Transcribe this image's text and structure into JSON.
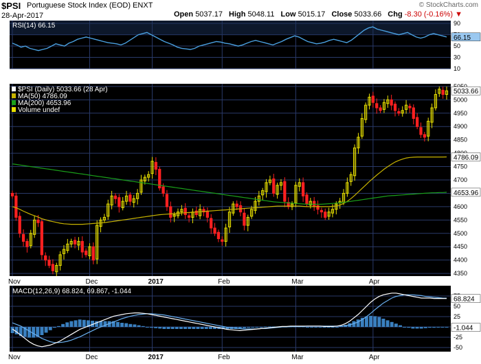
{
  "header": {
    "symbol": "$PSI",
    "name": "Portuguese Stock Index (EOD)",
    "exchange": "ENXT",
    "date": "28-Apr-2017",
    "open_label": "Open",
    "open": "5037.17",
    "high_label": "High",
    "high": "5048.11",
    "low_label": "Low",
    "low": "5015.17",
    "close_label": "Close",
    "close": "5033.66",
    "chg_label": "Chg",
    "chg": "-8.30 (-0.16%)",
    "watermark": "© StockCharts.com"
  },
  "colors": {
    "panel_bg": "#000000",
    "grid": "#2a3a6a",
    "up": "#e8e000",
    "down": "#ff2020",
    "ma50": "#c8b400",
    "ma200": "#1aa01a",
    "rsi": "#4aa0e0",
    "macd_line": "#ffffff",
    "signal_line": "#6ab0f0",
    "histogram": "#3a80c0"
  },
  "chart_data": [
    {
      "type": "line",
      "panel": "RSI",
      "legend": "RSI(14) 66.15",
      "last_value_label": "66.15",
      "ylim": [
        10,
        95
      ],
      "yticks": [
        90,
        70,
        50,
        30,
        10
      ],
      "values": [
        55,
        52,
        48,
        50,
        46,
        44,
        42,
        44,
        46,
        50,
        54,
        52,
        50,
        55,
        58,
        62,
        64,
        66,
        64,
        62,
        60,
        58,
        56,
        55,
        54,
        52,
        55,
        60,
        65,
        70,
        72,
        74,
        70,
        66,
        62,
        58,
        55,
        52,
        48,
        46,
        45,
        44,
        46,
        50,
        52,
        54,
        56,
        58,
        57,
        55,
        54,
        52,
        50,
        52,
        55,
        58,
        60,
        58,
        56,
        54,
        52,
        55,
        58,
        62,
        65,
        68,
        66,
        62,
        58,
        56,
        54,
        55,
        57,
        60,
        62,
        60,
        58,
        56,
        60,
        66,
        72,
        78,
        82,
        84,
        80,
        78,
        76,
        74,
        72,
        70,
        72,
        74,
        70,
        66,
        64,
        66,
        70,
        72,
        70,
        68,
        66.15
      ]
    },
    {
      "type": "candlestick",
      "panel": "Price",
      "legend": [
        "$PSI (Daily) 5033.66 (28 Apr)",
        "MA(50) 4786.09",
        "MA(200) 4653.96",
        "Volume undef"
      ],
      "last_value_labels": [
        "5033.66",
        "4786.09",
        "4653.96"
      ],
      "ylim": [
        4340,
        5060
      ],
      "yticks": [
        5050,
        5000,
        4950,
        4900,
        4850,
        4800,
        4750,
        4700,
        4650,
        4600,
        4550,
        4500,
        4450,
        4400,
        4350
      ],
      "x_labels": [
        "Nov",
        "Dec",
        "2017",
        "Feb",
        "Mar",
        "Apr"
      ],
      "x_label_index": [
        0,
        21,
        38,
        57,
        77,
        98
      ],
      "closes": [
        4640,
        4560,
        4500,
        4470,
        4450,
        4500,
        4550,
        4540,
        4420,
        4400,
        4380,
        4360,
        4380,
        4420,
        4440,
        4460,
        4470,
        4460,
        4470,
        4430,
        4420,
        4450,
        4400,
        4530,
        4550,
        4560,
        4610,
        4640,
        4630,
        4600,
        4620,
        4640,
        4620,
        4630,
        4650,
        4700,
        4710,
        4720,
        4770,
        4740,
        4670,
        4650,
        4600,
        4560,
        4570,
        4580,
        4590,
        4570,
        4560,
        4580,
        4570,
        4590,
        4580,
        4560,
        4520,
        4500,
        4480,
        4470,
        4520,
        4580,
        4610,
        4600,
        4580,
        4530,
        4560,
        4590,
        4620,
        4640,
        4660,
        4690,
        4700,
        4650,
        4680,
        4690,
        4620,
        4600,
        4610,
        4680,
        4690,
        4640,
        4610,
        4620,
        4600,
        4590,
        4580,
        4560,
        4580,
        4590,
        4610,
        4620,
        4650,
        4690,
        4720,
        4820,
        4860,
        4930,
        4980,
        5010,
        4990,
        4970,
        4960,
        4990,
        5000,
        4980,
        4960,
        4950,
        4960,
        4980,
        4970,
        4930,
        4900,
        4870,
        4860,
        4920,
        4970,
        5020,
        5040,
        5020,
        5033.66
      ],
      "ma50": [
        4600,
        4596,
        4590,
        4583,
        4577,
        4571,
        4566,
        4561,
        4555,
        4551,
        4547,
        4544,
        4541,
        4538,
        4536,
        4535,
        4534,
        4534,
        4534,
        4534,
        4535,
        4536,
        4537,
        4538,
        4539,
        4540,
        4542,
        4544,
        4546,
        4548,
        4550,
        4552,
        4554,
        4556,
        4558,
        4560,
        4562,
        4564,
        4566,
        4568,
        4570,
        4571,
        4572,
        4573,
        4574,
        4575,
        4576,
        4577,
        4578,
        4579,
        4580,
        4581,
        4582,
        4583,
        4584,
        4585,
        4586,
        4587,
        4588,
        4589,
        4590,
        4591,
        4592,
        4593,
        4594,
        4595,
        4596,
        4597,
        4598,
        4599,
        4600,
        4601,
        4602,
        4602,
        4602,
        4602,
        4602,
        4602,
        4602,
        4601,
        4600,
        4600,
        4600,
        4600,
        4600,
        4600,
        4600,
        4601,
        4603,
        4606,
        4612,
        4620,
        4630,
        4642,
        4655,
        4668,
        4681,
        4694,
        4706,
        4718,
        4729,
        4740,
        4750,
        4759,
        4767,
        4773,
        4778,
        4782,
        4784,
        4785,
        4786,
        4786,
        4786,
        4786,
        4786,
        4786,
        4786,
        4786,
        4786.09
      ],
      "ma200": [
        4760,
        4758,
        4756,
        4754,
        4752,
        4750,
        4748,
        4746,
        4744,
        4742,
        4740,
        4738,
        4736,
        4734,
        4732,
        4730,
        4728,
        4726,
        4724,
        4722,
        4720,
        4718,
        4716,
        4714,
        4712,
        4710,
        4708,
        4706,
        4704,
        4702,
        4700,
        4698,
        4696,
        4694,
        4692,
        4690,
        4688,
        4686,
        4684,
        4682,
        4680,
        4678,
        4676,
        4674,
        4672,
        4670,
        4668,
        4666,
        4664,
        4662,
        4660,
        4658,
        4656,
        4654,
        4652,
        4650,
        4648,
        4646,
        4644,
        4642,
        4640,
        4638,
        4636,
        4634,
        4632,
        4630,
        4628,
        4626,
        4624,
        4622,
        4620,
        4618,
        4617,
        4616,
        4615,
        4614,
        4613,
        4612,
        4611,
        4610,
        4609,
        4609,
        4609,
        4609,
        4609,
        4610,
        4611,
        4612,
        4613,
        4614,
        4616,
        4618,
        4620,
        4622,
        4624,
        4626,
        4628,
        4630,
        4632,
        4634,
        4636,
        4638,
        4640,
        4641,
        4642,
        4643,
        4644,
        4645,
        4646,
        4647,
        4648,
        4649,
        4650,
        4651,
        4652,
        4652,
        4653,
        4653,
        4653.96
      ]
    },
    {
      "type": "line",
      "panel": "MACD",
      "legend": "MACD(12,26,9) 68.824, 69.867, -1.044",
      "last_value_labels": [
        "68.824",
        "-1.044"
      ],
      "ylim": [
        -60,
        100
      ],
      "yticks": [
        75,
        50,
        25,
        0,
        -25,
        -50
      ],
      "macd": [
        -5,
        -12,
        -20,
        -28,
        -36,
        -42,
        -46,
        -48,
        -46,
        -44,
        -40,
        -36,
        -30,
        -24,
        -18,
        -12,
        -6,
        -2,
        2,
        6,
        10,
        14,
        18,
        22,
        26,
        28,
        30,
        32,
        33,
        34,
        34,
        33,
        32,
        30,
        28,
        26,
        24,
        22,
        20,
        18,
        16,
        14,
        12,
        10,
        8,
        6,
        4,
        2,
        0,
        -2,
        -4,
        -6,
        -7,
        -8,
        -9,
        -8,
        -7,
        -6,
        -5,
        -4,
        -3,
        -2,
        -1,
        0,
        1,
        1,
        2,
        2,
        2,
        2,
        2,
        2,
        2,
        2,
        1,
        1,
        1,
        2,
        4,
        8,
        14,
        22,
        30,
        40,
        50,
        60,
        68,
        74,
        78,
        80,
        82,
        82,
        80,
        78,
        76,
        74,
        72,
        70,
        70,
        70,
        69,
        69,
        69,
        68.824
      ],
      "signal": [
        10,
        6,
        2,
        -4,
        -10,
        -16,
        -22,
        -28,
        -32,
        -36,
        -38,
        -38,
        -37,
        -35,
        -32,
        -28,
        -24,
        -19,
        -14,
        -9,
        -4,
        0,
        4,
        8,
        12,
        16,
        20,
        23,
        26,
        28,
        30,
        31,
        32,
        32,
        31,
        30,
        29,
        27,
        25,
        23,
        21,
        19,
        17,
        15,
        13,
        11,
        9,
        7,
        5,
        3,
        1,
        -1,
        -2,
        -3,
        -4,
        -5,
        -5,
        -5,
        -5,
        -4,
        -4,
        -3,
        -2,
        -1,
        0,
        0,
        1,
        1,
        1,
        1,
        2,
        2,
        2,
        2,
        2,
        2,
        2,
        2,
        2,
        3,
        5,
        8,
        12,
        18,
        25,
        33,
        42,
        50,
        58,
        64,
        70,
        74,
        76,
        78,
        78,
        78,
        77,
        76,
        74,
        73,
        72,
        71,
        70,
        69.867
      ],
      "histogram": [
        -15,
        -18,
        -22,
        -24,
        -26,
        -26,
        -24,
        -20,
        -14,
        -8,
        -2,
        2,
        7,
        11,
        14,
        16,
        18,
        17,
        16,
        15,
        14,
        14,
        14,
        14,
        14,
        12,
        10,
        9,
        7,
        6,
        4,
        2,
        0,
        -2,
        -3,
        -4,
        -5,
        -5,
        -5,
        -5,
        -5,
        -5,
        -5,
        -5,
        -5,
        -5,
        -5,
        -5,
        -5,
        -5,
        -5,
        -5,
        -5,
        -5,
        -5,
        -3,
        -2,
        -1,
        0,
        0,
        1,
        1,
        1,
        1,
        1,
        1,
        1,
        1,
        1,
        1,
        0,
        0,
        0,
        0,
        -1,
        -1,
        -1,
        0,
        2,
        5,
        9,
        14,
        18,
        22,
        25,
        27,
        26,
        24,
        20,
        16,
        12,
        8,
        4,
        0,
        -2,
        -4,
        -4,
        -4,
        -3,
        -2,
        -2,
        -1,
        -1,
        -1.044
      ],
      "x_labels": [
        "Nov",
        "Dec",
        "2017",
        "Feb",
        "Mar",
        "Apr"
      ]
    }
  ]
}
